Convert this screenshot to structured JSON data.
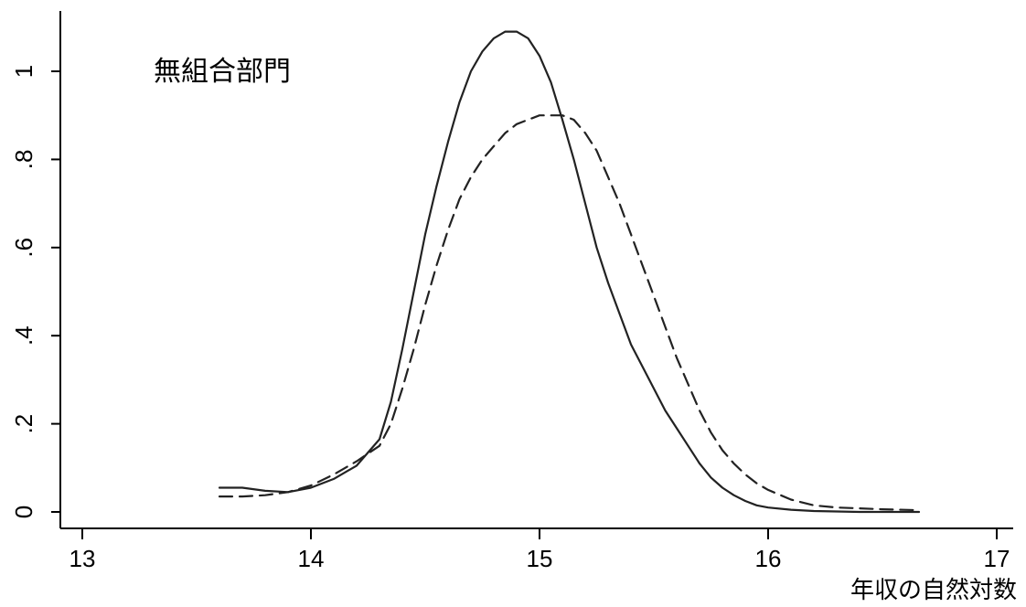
{
  "chart_data": {
    "type": "line",
    "title": "",
    "annotation": "無組合部門",
    "xlabel": "年収の自然対数",
    "ylabel": "",
    "xlim": [
      13,
      17
    ],
    "ylim": [
      0,
      1.1
    ],
    "x_ticks": [
      13,
      14,
      15,
      16,
      17
    ],
    "x_tick_labels": [
      "13",
      "14",
      "15",
      "16",
      "17"
    ],
    "y_ticks": [
      0,
      0.2,
      0.4,
      0.6,
      0.8,
      1.0
    ],
    "y_tick_labels": [
      "0",
      ".2",
      ".4",
      ".6",
      ".8",
      "1"
    ],
    "grid": false,
    "series": [
      {
        "style": "solid",
        "color": "#222222",
        "x": [
          13.6,
          13.7,
          13.8,
          13.9,
          14.0,
          14.1,
          14.2,
          14.3,
          14.35,
          14.4,
          14.45,
          14.5,
          14.55,
          14.6,
          14.65,
          14.7,
          14.75,
          14.8,
          14.85,
          14.9,
          14.95,
          15.0,
          15.05,
          15.1,
          15.15,
          15.2,
          15.25,
          15.3,
          15.35,
          15.4,
          15.45,
          15.5,
          15.55,
          15.6,
          15.65,
          15.7,
          15.75,
          15.8,
          15.85,
          15.9,
          15.95,
          16.0,
          16.1,
          16.2,
          16.3,
          16.4,
          16.5,
          16.66
        ],
        "y": [
          0.055,
          0.055,
          0.048,
          0.045,
          0.055,
          0.075,
          0.105,
          0.165,
          0.25,
          0.37,
          0.5,
          0.63,
          0.74,
          0.84,
          0.93,
          1.0,
          1.045,
          1.075,
          1.09,
          1.09,
          1.075,
          1.035,
          0.975,
          0.89,
          0.8,
          0.7,
          0.6,
          0.52,
          0.45,
          0.38,
          0.33,
          0.28,
          0.23,
          0.19,
          0.15,
          0.11,
          0.078,
          0.055,
          0.038,
          0.025,
          0.015,
          0.01,
          0.005,
          0.002,
          0.001,
          0.0,
          0.0,
          0.0
        ]
      },
      {
        "style": "dashed",
        "color": "#222222",
        "x": [
          13.6,
          13.7,
          13.8,
          13.9,
          14.0,
          14.1,
          14.2,
          14.3,
          14.35,
          14.4,
          14.45,
          14.5,
          14.55,
          14.6,
          14.65,
          14.7,
          14.75,
          14.8,
          14.85,
          14.9,
          14.95,
          15.0,
          15.05,
          15.1,
          15.15,
          15.2,
          15.25,
          15.3,
          15.35,
          15.4,
          15.45,
          15.5,
          15.55,
          15.6,
          15.65,
          15.7,
          15.75,
          15.8,
          15.85,
          15.9,
          15.95,
          16.0,
          16.1,
          16.2,
          16.3,
          16.4,
          16.5,
          16.66
        ],
        "y": [
          0.035,
          0.035,
          0.038,
          0.045,
          0.06,
          0.085,
          0.115,
          0.15,
          0.2,
          0.28,
          0.37,
          0.47,
          0.56,
          0.64,
          0.71,
          0.76,
          0.8,
          0.83,
          0.86,
          0.88,
          0.89,
          0.9,
          0.9,
          0.9,
          0.89,
          0.86,
          0.82,
          0.76,
          0.7,
          0.63,
          0.56,
          0.49,
          0.42,
          0.35,
          0.29,
          0.23,
          0.18,
          0.14,
          0.11,
          0.085,
          0.065,
          0.05,
          0.028,
          0.015,
          0.01,
          0.008,
          0.006,
          0.004
        ]
      }
    ]
  }
}
